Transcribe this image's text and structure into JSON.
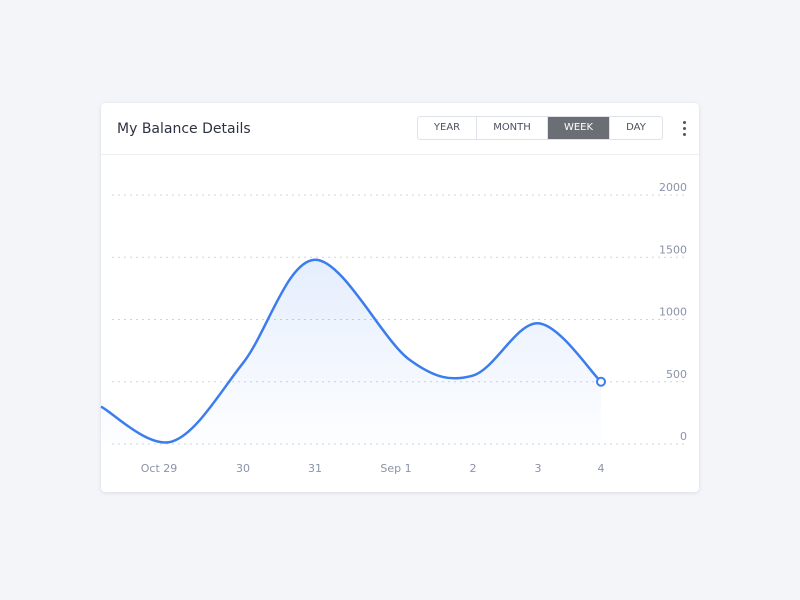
{
  "card": {
    "title": "My Balance Details",
    "periods": [
      "YEAR",
      "MONTH",
      "WEEK",
      "DAY"
    ],
    "active_period": 2
  },
  "chart_data": {
    "type": "line",
    "categories": [
      null,
      "Oct 29",
      "30",
      "31",
      "Sep 1",
      "2",
      "3",
      "4"
    ],
    "series": [
      {
        "color": "#3b7ded",
        "values": [
          300,
          20,
          650,
          1480,
          680,
          550,
          970,
          500
        ]
      }
    ],
    "ylim": [
      0,
      2000
    ],
    "yticks": [
      0,
      500,
      1000,
      1500,
      2000
    ],
    "grid": true
  }
}
